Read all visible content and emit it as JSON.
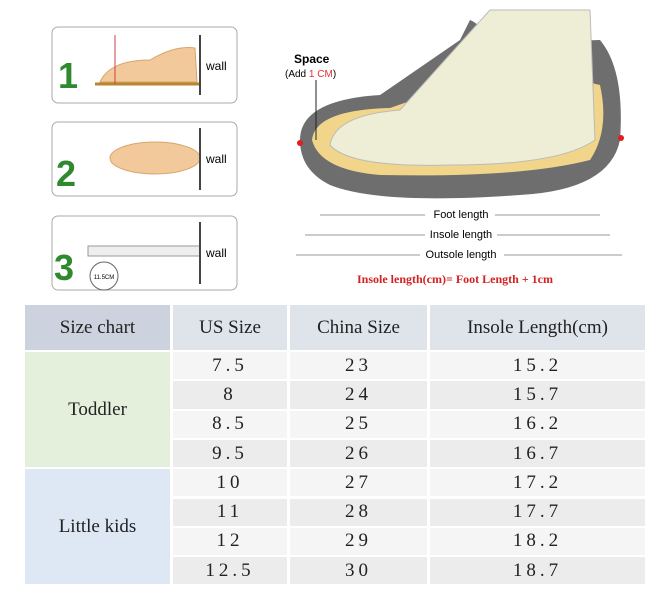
{
  "steps": [
    {
      "number": "1",
      "label": "wall"
    },
    {
      "number": "2",
      "label": "wall"
    },
    {
      "number": "3",
      "label": "wall",
      "measure": "11.5CM"
    }
  ],
  "diagram": {
    "space": "Space",
    "add_prefix": "(Add ",
    "add_value": "1 CM",
    "add_suffix": ")",
    "foot_length": "Foot length",
    "insole_length": "Insole length",
    "outsole_length": "Outsole length",
    "formula": "Insole length(cm)= Foot Length + 1cm"
  },
  "table": {
    "header": [
      "Size chart",
      "US Size",
      "China Size",
      "Insole Length(cm)"
    ],
    "groups": [
      {
        "name": "Toddler",
        "rows": [
          [
            "7.5",
            "23",
            "15.2"
          ],
          [
            "8",
            "24",
            "15.7"
          ],
          [
            "8.5",
            "25",
            "16.2"
          ],
          [
            "9.5",
            "26",
            "16.7"
          ]
        ]
      },
      {
        "name": "Little kids",
        "rows": [
          [
            "10",
            "27",
            "17.2"
          ],
          [
            "11",
            "28",
            "17.7"
          ],
          [
            "12",
            "29",
            "18.2"
          ],
          [
            "12.5",
            "30",
            "18.7"
          ]
        ]
      }
    ]
  }
}
